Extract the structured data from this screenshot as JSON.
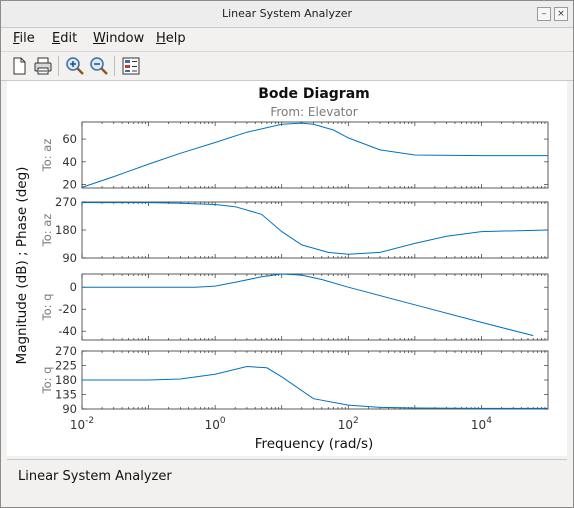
{
  "window": {
    "title": "Linear System Analyzer",
    "controls": {
      "minimize": "–",
      "close": "×"
    }
  },
  "menu": [
    {
      "label": "File",
      "mnemonic": "F",
      "rest": "ile"
    },
    {
      "label": "Edit",
      "mnemonic": "E",
      "rest": "dit"
    },
    {
      "label": "Window",
      "mnemonic": "W",
      "rest": "indow"
    },
    {
      "label": "Help",
      "mnemonic": "H",
      "rest": "elp"
    }
  ],
  "toolbar": {
    "icons": [
      "new-document-icon",
      "print-icon",
      "zoom-in-icon",
      "zoom-out-icon",
      "plot-configurations-icon"
    ]
  },
  "status": {
    "text": "Linear System Analyzer"
  },
  "chart_data": {
    "type": "line",
    "title": "Bode Diagram",
    "subtitle": "From: Elevator",
    "xlabel": "Frequency  (rad/s)",
    "ylabel": "Magnitude (dB) ; Phase (deg)",
    "xscale": "log",
    "xlim": [
      0.01,
      100000
    ],
    "xticks": [
      0.01,
      1,
      100,
      10000
    ],
    "xtick_labels": [
      {
        "base": "10",
        "exp": "-2"
      },
      {
        "base": "10",
        "exp": "0"
      },
      {
        "base": "10",
        "exp": "2"
      },
      {
        "base": "10",
        "exp": "4"
      }
    ],
    "grid": false,
    "line_color": "#0072bd",
    "panels": [
      {
        "label": "To: az",
        "quantity": "magnitude",
        "ylim": [
          17,
          75
        ],
        "yticks": [
          20,
          40,
          60
        ],
        "x": [
          0.01,
          0.03,
          0.1,
          0.3,
          1,
          3,
          10,
          20,
          30,
          60,
          100,
          300,
          1000,
          10000,
          100000
        ],
        "y": [
          17.5,
          27,
          38,
          47.5,
          57,
          66,
          73,
          74,
          73,
          68,
          61,
          50.5,
          46,
          45.5,
          45.5
        ]
      },
      {
        "label": "To: az",
        "quantity": "phase",
        "ylim": [
          90,
          270
        ],
        "yticks": [
          90,
          180,
          270
        ],
        "x": [
          0.01,
          0.1,
          0.3,
          1,
          2,
          5,
          10,
          20,
          50,
          100,
          300,
          1000,
          3000,
          10000,
          100000
        ],
        "y": [
          268,
          268,
          266,
          262,
          255,
          230,
          175,
          132,
          108,
          102,
          108,
          137,
          160,
          175,
          180
        ]
      },
      {
        "label": "To: q",
        "quantity": "magnitude",
        "ylim": [
          -48,
          12
        ],
        "yticks": [
          -40,
          -20,
          0
        ],
        "x": [
          0.01,
          0.1,
          0.5,
          1,
          2,
          5,
          10,
          20,
          40,
          100,
          1000,
          10000,
          60000
        ],
        "y": [
          0,
          0,
          0,
          1,
          4.5,
          9.5,
          12,
          11,
          7,
          0,
          -16,
          -32,
          -44
        ]
      },
      {
        "label": "To: q",
        "quantity": "phase",
        "ylim": [
          90,
          270
        ],
        "yticks": [
          90,
          135,
          180,
          225,
          270
        ],
        "x": [
          0.01,
          0.1,
          0.3,
          1,
          3,
          6,
          10,
          30,
          100,
          300,
          1000,
          10000,
          100000
        ],
        "y": [
          180,
          180,
          183,
          198,
          222,
          218,
          190,
          122,
          102,
          95,
          93,
          92,
          92
        ]
      }
    ]
  }
}
